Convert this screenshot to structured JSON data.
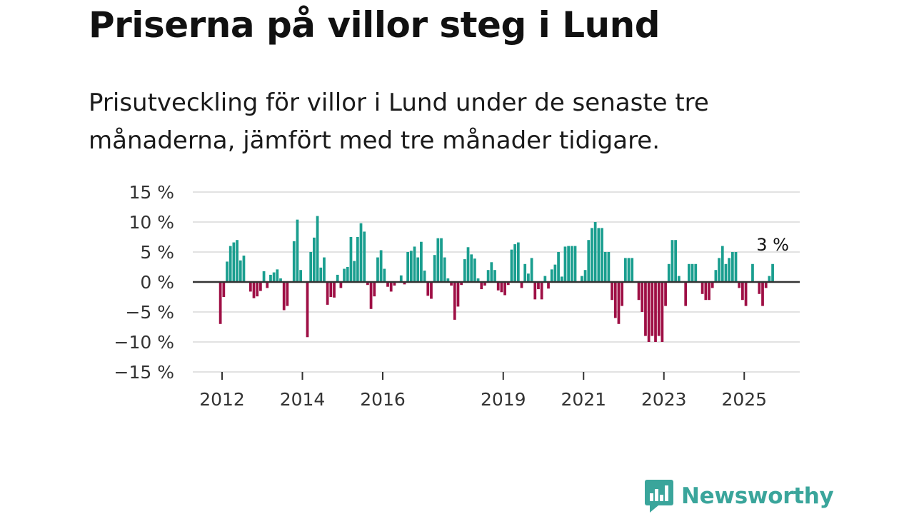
{
  "header": {
    "title": "Priserna på villor steg i Lund",
    "subtitle": "Prisutveckling för villor i Lund under de senaste tre månaderna, jämfört med tre månader tidigare."
  },
  "brand": {
    "name": "Newsworthy",
    "color": "#3aa59b"
  },
  "chart_data": {
    "type": "bar",
    "title": "Priserna på villor steg i Lund",
    "xlabel": "",
    "ylabel": "",
    "ylim": [
      -15,
      15
    ],
    "y_ticks": [
      15,
      10,
      5,
      0,
      -5,
      -10,
      -15
    ],
    "y_tick_labels": [
      "15 %",
      "10 %",
      "5 %",
      "0 %",
      "−5 %",
      "−10 %",
      "−15 %"
    ],
    "x_tick_labels": [
      "2012",
      "2014",
      "2016",
      "2019",
      "2021",
      "2023",
      "2025"
    ],
    "x_tick_positions": [
      2012,
      2014,
      2016,
      2019,
      2021,
      2023,
      2025
    ],
    "x_start": 2011.958,
    "positive_color": "#1a9e8f",
    "negative_color": "#9e0f45",
    "annotation": {
      "label": "3 %",
      "value": 3
    },
    "values": [
      -7,
      -2.5,
      3.4,
      6,
      6.6,
      7,
      3.6,
      4.4,
      0,
      -1.6,
      -2.7,
      -2.4,
      -1.5,
      1.8,
      -1,
      1.2,
      1.6,
      2.1,
      0.6,
      -4.7,
      -4,
      0,
      6.8,
      10.4,
      2,
      0,
      -9.2,
      5,
      7.4,
      11,
      2.4,
      4.1,
      -3.8,
      -2.5,
      -2.6,
      1.2,
      -1,
      2.2,
      2.5,
      7.5,
      3.5,
      7.5,
      9.8,
      8.4,
      -0.5,
      -4.5,
      -2.4,
      4.1,
      5.3,
      2.2,
      -0.8,
      -1.6,
      -0.6,
      0,
      1.1,
      -0.4,
      5,
      5.2,
      5.9,
      4.1,
      6.7,
      1.9,
      -2.3,
      -2.8,
      4.5,
      7.3,
      7.3,
      4.1,
      0.6,
      -0.6,
      -6.3,
      -4.1,
      -0.5,
      3.8,
      5.8,
      4.6,
      3.9,
      0.6,
      -1.2,
      -0.6,
      2,
      3.3,
      2,
      -1.4,
      -1.7,
      -2.2,
      -0.5,
      5.4,
      6.3,
      6.6,
      -1,
      3,
      1.4,
      4,
      -2.9,
      -1.2,
      -2.9,
      1,
      -1.1,
      2.1,
      2.9,
      5,
      0.9,
      5.9,
      6,
      6,
      6,
      0,
      1,
      2,
      7,
      9,
      10,
      9,
      9,
      5,
      5,
      -3,
      -6,
      -7,
      -4,
      4,
      4,
      4,
      0,
      -3,
      -5,
      -9,
      -10,
      -9,
      -10,
      -9,
      -10,
      -4,
      3,
      7,
      7,
      1,
      0,
      -4,
      3,
      3,
      3,
      0,
      -2,
      -3,
      -3,
      -1,
      2,
      4,
      6,
      3,
      4,
      5,
      5,
      -1,
      -3,
      -4,
      0,
      3,
      0,
      -2,
      -4,
      -1,
      1,
      3
    ]
  }
}
